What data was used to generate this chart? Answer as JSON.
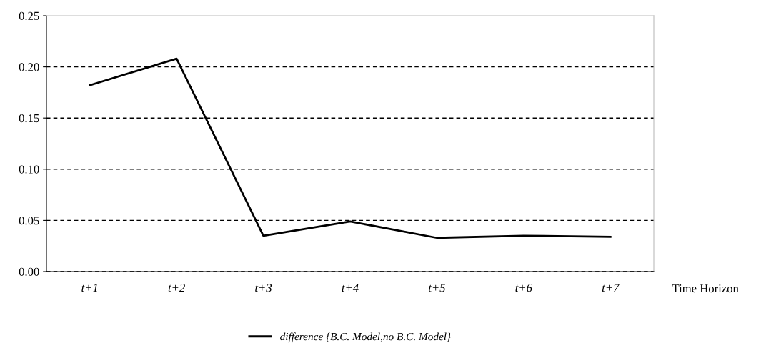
{
  "chart_data": {
    "type": "line",
    "xlabel": "Time Horizon",
    "categories": [
      "t+1",
      "t+2",
      "t+3",
      "t+4",
      "t+5",
      "t+6",
      "t+7"
    ],
    "series": [
      {
        "name": "difference {B.C. Model,no B.C. Model}",
        "color": "#000000",
        "values": [
          0.182,
          0.208,
          0.035,
          0.049,
          0.033,
          0.035,
          0.034
        ]
      }
    ],
    "ylim": [
      0,
      0.25
    ],
    "yticks": [
      {
        "value": 0,
        "label": "0.00"
      },
      {
        "value": 0.05,
        "label": "0.05"
      },
      {
        "value": 0.1,
        "label": "0.10"
      },
      {
        "value": 0.15,
        "label": "0.15"
      },
      {
        "value": 0.2,
        "label": "0.20"
      },
      {
        "value": 0.25,
        "label": "0.25"
      }
    ],
    "grid": "y",
    "legend": "bottom",
    "line_style": "solid",
    "marker": "none"
  }
}
